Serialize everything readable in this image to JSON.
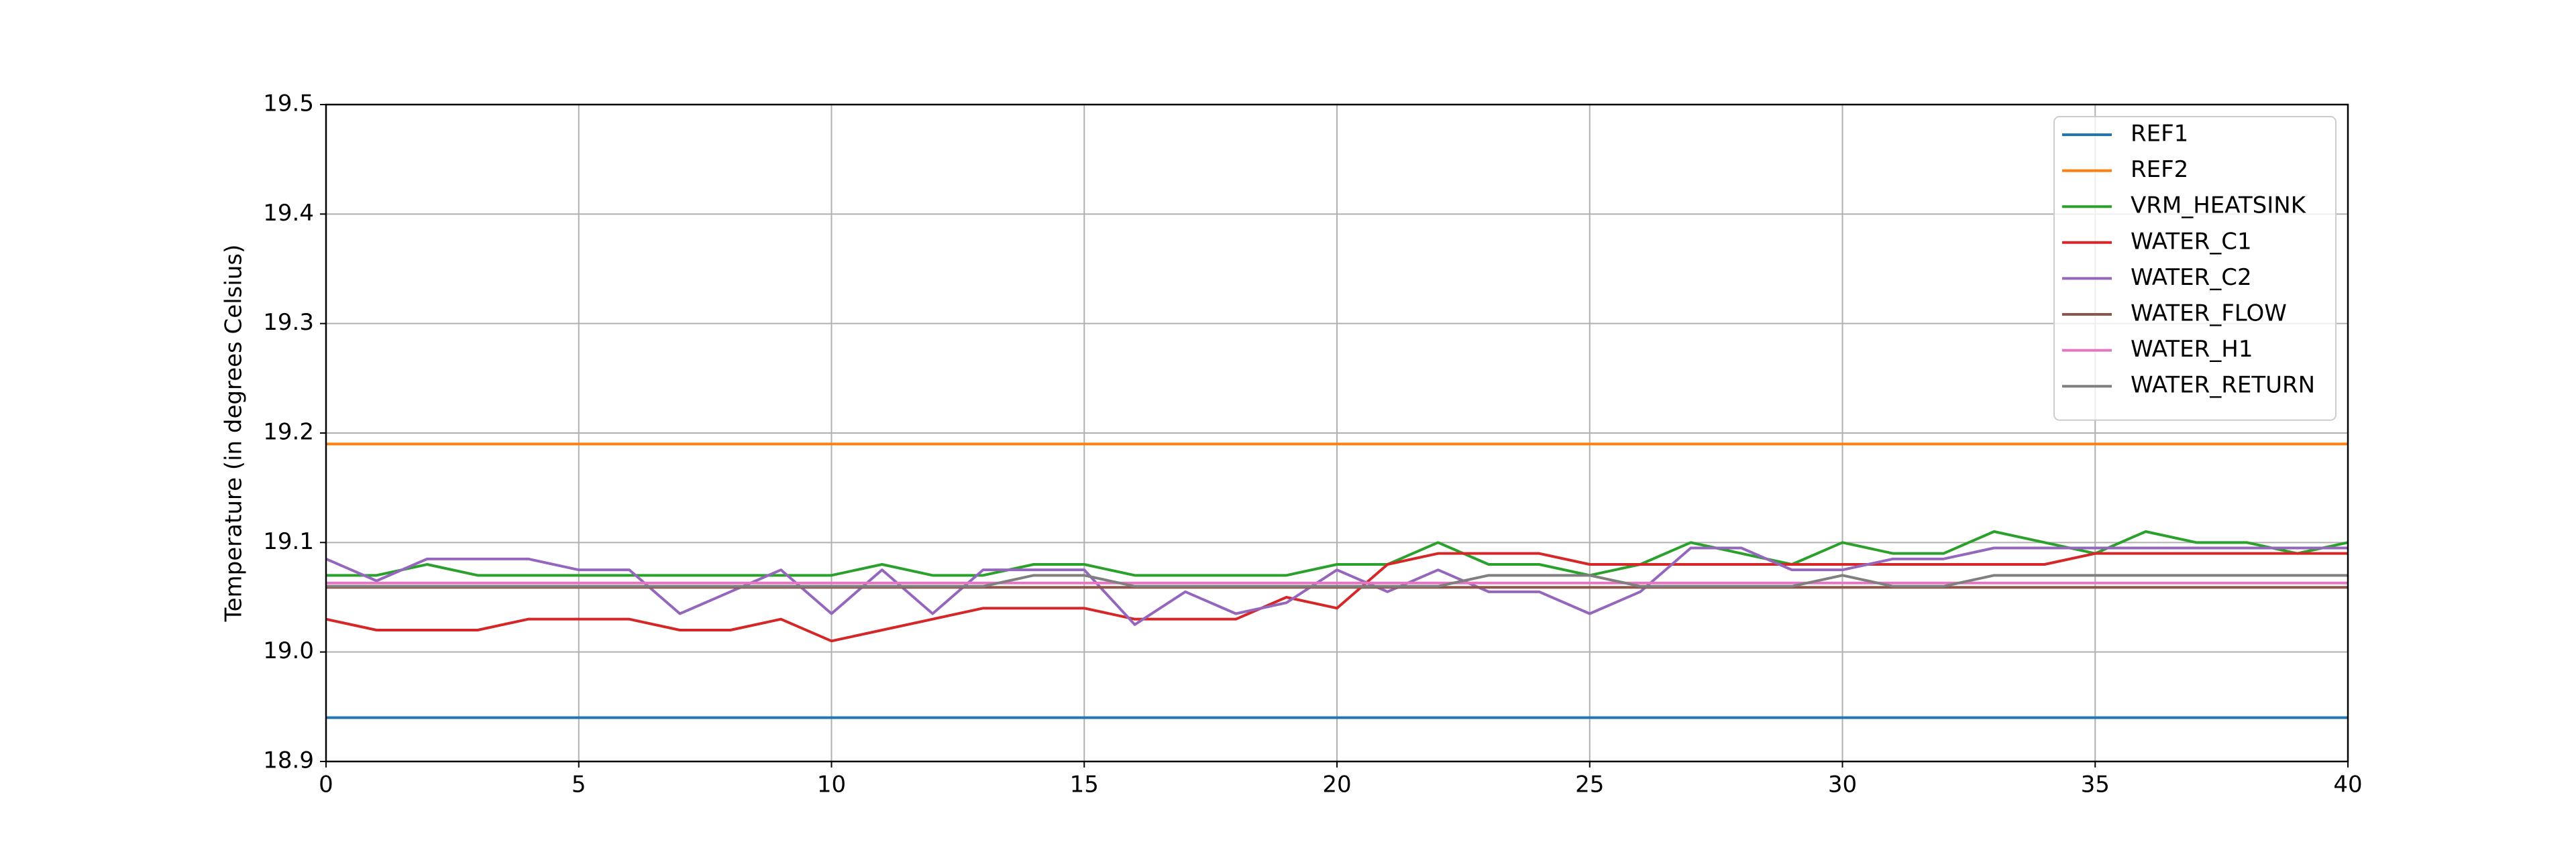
{
  "chart_data": {
    "type": "line",
    "y_label": "Temperature (in degrees Celsius)",
    "x": [
      0,
      1,
      2,
      3,
      4,
      5,
      6,
      7,
      8,
      9,
      10,
      11,
      12,
      13,
      14,
      15,
      16,
      17,
      18,
      19,
      20,
      21,
      22,
      23,
      24,
      25,
      26,
      27,
      28,
      29,
      30,
      31,
      32,
      33,
      34,
      35,
      36,
      37,
      38,
      39,
      40
    ],
    "xlim": [
      0,
      40
    ],
    "xticks": [
      0,
      5,
      10,
      15,
      20,
      25,
      30,
      35,
      40
    ],
    "ylim": [
      18.9,
      19.5
    ],
    "yticks": [
      18.9,
      {
        "value": 19,
        "label": "19.0"
      },
      19.1,
      19.2,
      19.3,
      19.4,
      19.5
    ],
    "grid": true,
    "legend": "upper right",
    "series": [
      {
        "name": "REF1",
        "color": "#1f77b4",
        "values": [
          18.94,
          18.94,
          18.94,
          18.94,
          18.94,
          18.94,
          18.94,
          18.94,
          18.94,
          18.94,
          18.94,
          18.94,
          18.94,
          18.94,
          18.94,
          18.94,
          18.94,
          18.94,
          18.94,
          18.94,
          18.94,
          18.94,
          18.94,
          18.94,
          18.94,
          18.94,
          18.94,
          18.94,
          18.94,
          18.94,
          18.94,
          18.94,
          18.94,
          18.94,
          18.94,
          18.94,
          18.94,
          18.94,
          18.94,
          18.94,
          18.94
        ]
      },
      {
        "name": "REF2",
        "color": "#ff7f0e",
        "values": [
          19.19,
          19.19,
          19.19,
          19.19,
          19.19,
          19.19,
          19.19,
          19.19,
          19.19,
          19.19,
          19.19,
          19.19,
          19.19,
          19.19,
          19.19,
          19.19,
          19.19,
          19.19,
          19.19,
          19.19,
          19.19,
          19.19,
          19.19,
          19.19,
          19.19,
          19.19,
          19.19,
          19.19,
          19.19,
          19.19,
          19.19,
          19.19,
          19.19,
          19.19,
          19.19,
          19.19,
          19.19,
          19.19,
          19.19,
          19.19,
          19.19
        ]
      },
      {
        "name": "VRM_HEATSINK",
        "color": "#2ca02c",
        "values": [
          19.07,
          19.07,
          19.08,
          19.07,
          19.07,
          19.07,
          19.07,
          19.07,
          19.07,
          19.07,
          19.07,
          19.08,
          19.07,
          19.07,
          19.08,
          19.08,
          19.07,
          19.07,
          19.07,
          19.07,
          19.08,
          19.08,
          19.1,
          19.08,
          19.08,
          19.07,
          19.08,
          19.1,
          19.09,
          19.08,
          19.1,
          19.09,
          19.09,
          19.11,
          19.1,
          19.09,
          19.11,
          19.1,
          19.1,
          19.09,
          19.1
        ]
      },
      {
        "name": "WATER_C1",
        "color": "#d62728",
        "values": [
          19.03,
          19.02,
          19.02,
          19.02,
          19.03,
          19.03,
          19.03,
          19.02,
          19.02,
          19.03,
          19.01,
          19.02,
          19.03,
          19.04,
          19.04,
          19.04,
          19.03,
          19.03,
          19.03,
          19.05,
          19.04,
          19.08,
          19.09,
          19.09,
          19.09,
          19.08,
          19.08,
          19.08,
          19.08,
          19.08,
          19.08,
          19.08,
          19.08,
          19.08,
          19.08,
          19.09,
          19.09,
          19.09,
          19.09,
          19.09,
          19.09
        ]
      },
      {
        "name": "WATER_C2",
        "color": "#9467bd",
        "values": [
          19.085,
          19.065,
          19.085,
          19.085,
          19.085,
          19.075,
          19.075,
          19.035,
          19.055,
          19.075,
          19.035,
          19.075,
          19.035,
          19.075,
          19.075,
          19.075,
          19.025,
          19.055,
          19.035,
          19.045,
          19.075,
          19.055,
          19.075,
          19.055,
          19.055,
          19.035,
          19.055,
          19.095,
          19.095,
          19.075,
          19.075,
          19.085,
          19.085,
          19.095,
          19.095,
          19.095,
          19.095,
          19.095,
          19.095,
          19.095,
          19.095
        ]
      },
      {
        "name": "WATER_FLOW",
        "color": "#8c564b",
        "values": [
          19.059,
          19.059,
          19.059,
          19.059,
          19.059,
          19.059,
          19.059,
          19.059,
          19.059,
          19.059,
          19.059,
          19.059,
          19.059,
          19.059,
          19.059,
          19.059,
          19.059,
          19.059,
          19.059,
          19.059,
          19.059,
          19.059,
          19.059,
          19.059,
          19.059,
          19.059,
          19.059,
          19.059,
          19.059,
          19.059,
          19.059,
          19.059,
          19.059,
          19.059,
          19.059,
          19.059,
          19.059,
          19.059,
          19.059,
          19.059,
          19.059
        ]
      },
      {
        "name": "WATER_H1",
        "color": "#e377c2",
        "values": [
          19.063,
          19.063,
          19.063,
          19.063,
          19.063,
          19.063,
          19.063,
          19.063,
          19.063,
          19.063,
          19.063,
          19.063,
          19.063,
          19.063,
          19.063,
          19.063,
          19.063,
          19.063,
          19.063,
          19.063,
          19.063,
          19.063,
          19.063,
          19.063,
          19.063,
          19.063,
          19.063,
          19.063,
          19.063,
          19.063,
          19.063,
          19.063,
          19.063,
          19.063,
          19.063,
          19.063,
          19.063,
          19.063,
          19.063,
          19.063,
          19.063
        ]
      },
      {
        "name": "WATER_RETURN",
        "color": "#7f7f7f",
        "values": [
          19.06,
          19.06,
          19.06,
          19.06,
          19.06,
          19.06,
          19.06,
          19.06,
          19.06,
          19.06,
          19.06,
          19.06,
          19.06,
          19.06,
          19.07,
          19.07,
          19.06,
          19.06,
          19.06,
          19.06,
          19.06,
          19.06,
          19.06,
          19.07,
          19.07,
          19.07,
          19.06,
          19.06,
          19.06,
          19.06,
          19.07,
          19.06,
          19.06,
          19.07,
          19.07,
          19.07,
          19.07,
          19.07,
          19.07,
          19.07,
          19.07
        ]
      }
    ]
  }
}
